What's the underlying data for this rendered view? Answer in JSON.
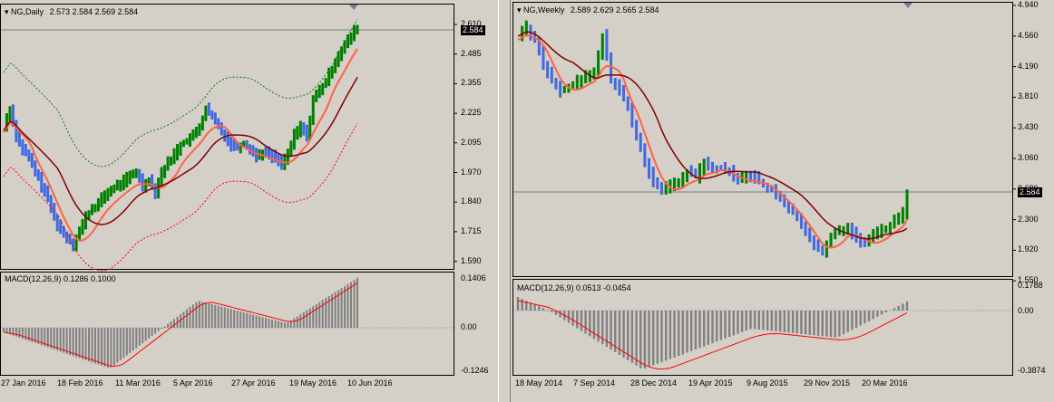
{
  "left_chart": {
    "title": "NG,Daily",
    "ohlc": "2.573 2.584 2.569 2.584",
    "current_price": "2.584",
    "price_axis": [
      "2.610",
      "2.485",
      "2.355",
      "2.225",
      "2.095",
      "1.970",
      "1.840",
      "1.715",
      "1.590"
    ],
    "macd_title": "MACD(12,26,9) 0.1286 0.1000",
    "macd_axis": [
      "0.1406",
      "0.00",
      "-0.1246"
    ],
    "time_axis": [
      "27 Jan 2016",
      "18 Feb 2016",
      "11 Mar 2016",
      "5 Apr 2016",
      "27 Apr 2016",
      "19 May 2016",
      "10 Jun 2016"
    ]
  },
  "right_chart": {
    "title": "NG,Weekly",
    "ohlc": "2.589 2.629 2.565 2.584",
    "current_price": "2.584",
    "price_axis": [
      "4.940",
      "4.560",
      "4.190",
      "3.810",
      "3.430",
      "3.060",
      "2.680",
      "2.300",
      "1.920",
      "1.550"
    ],
    "macd_title": "MACD(12,26,9) 0.0513 -0.0454",
    "macd_axis": [
      "0.1788",
      "0.00",
      "-0.3874"
    ],
    "time_axis": [
      "18 May 2014",
      "7 Sep 2014",
      "28 Dec 2014",
      "19 Apr 2015",
      "9 Aug 2015",
      "29 Nov 2015",
      "20 Mar 2016"
    ]
  },
  "colors": {
    "bull": "#008000",
    "bear": "#4169e1",
    "fast_ma": "#ff6347",
    "slow_ma": "#800000",
    "macd_hist": "#808080",
    "macd_signal": "#ff0000",
    "envelope_up": "#008000",
    "envelope_down": "#ff0000"
  }
}
